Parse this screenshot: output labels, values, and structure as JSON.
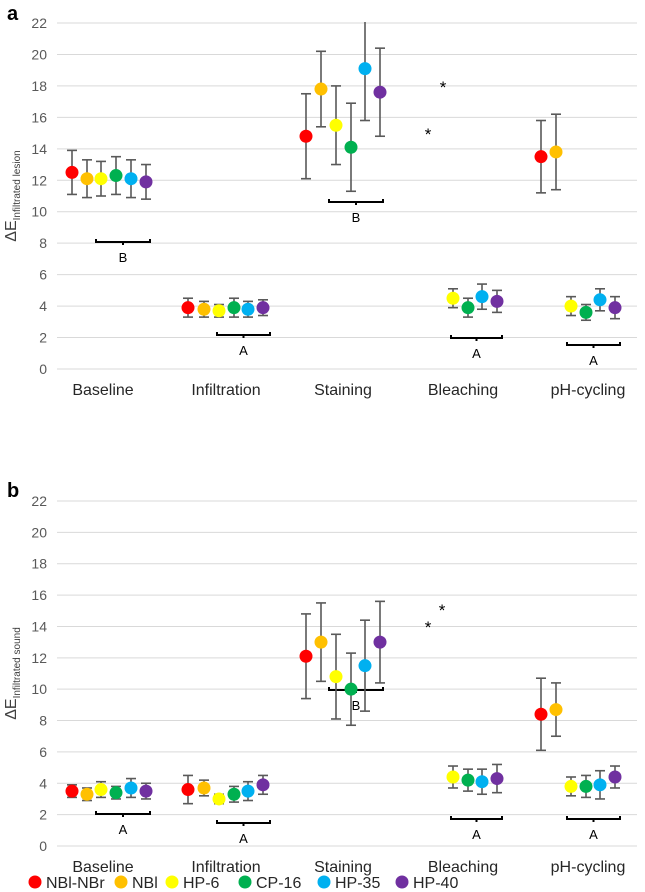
{
  "series_names": [
    "NBl-NBr",
    "NBl",
    "HP-6",
    "CP-16",
    "HP-35",
    "HP-40"
  ],
  "series_colors": [
    "#ff0000",
    "#ffc000",
    "#ffff00",
    "#00b050",
    "#00b0f0",
    "#7030a0"
  ],
  "chart_data": [
    {
      "type": "scatter",
      "panel_label": "a",
      "ylabel": "ΔE",
      "ylabel_subscript": "Infiltrated lesion",
      "ylim": [
        0,
        22
      ],
      "yticks": [
        "0",
        "2",
        "4",
        "6",
        "8",
        "10",
        "12",
        "14",
        "16",
        "18",
        "20",
        "22"
      ],
      "categories": [
        "Baseline",
        "Infiltration",
        "Staining",
        "Bleaching",
        "pH-cycling"
      ],
      "series": [
        {
          "name": "NBl-NBr",
          "values": [
            12.5,
            3.9,
            14.8,
            null,
            13.5
          ],
          "errors": [
            1.4,
            0.6,
            2.7,
            null,
            2.3
          ]
        },
        {
          "name": "NBl",
          "values": [
            12.1,
            3.8,
            17.8,
            null,
            13.8
          ],
          "errors": [
            1.2,
            0.5,
            2.4,
            null,
            2.4
          ]
        },
        {
          "name": "HP-6",
          "values": [
            12.1,
            3.7,
            15.5,
            4.5,
            4.0
          ],
          "errors": [
            1.1,
            0.4,
            2.5,
            0.6,
            0.6
          ]
        },
        {
          "name": "CP-16",
          "values": [
            12.3,
            3.9,
            14.1,
            3.9,
            3.6
          ],
          "errors": [
            1.2,
            0.6,
            2.8,
            0.6,
            0.5
          ]
        },
        {
          "name": "HP-35",
          "values": [
            12.1,
            3.8,
            19.1,
            4.6,
            4.4
          ],
          "errors": [
            1.2,
            0.5,
            3.3,
            0.8,
            0.7
          ]
        },
        {
          "name": "HP-40",
          "values": [
            11.9,
            3.9,
            17.6,
            4.3,
            3.9
          ],
          "errors": [
            1.1,
            0.5,
            2.8,
            0.7,
            0.7
          ]
        }
      ],
      "group_letters": [
        "B",
        "A",
        "B",
        "A",
        "A"
      ],
      "annotations": [
        "*",
        "*"
      ]
    },
    {
      "type": "scatter",
      "panel_label": "b",
      "ylabel": "ΔE",
      "ylabel_subscript": "Infiltrated sound",
      "ylim": [
        0,
        22
      ],
      "yticks": [
        "0",
        "2",
        "4",
        "6",
        "8",
        "10",
        "12",
        "14",
        "16",
        "18",
        "20",
        "22"
      ],
      "categories": [
        "Baseline",
        "Infiltration",
        "Staining",
        "Bleaching",
        "pH-cycling"
      ],
      "series": [
        {
          "name": "NBl-NBr",
          "values": [
            3.5,
            3.6,
            12.1,
            null,
            8.4
          ],
          "errors": [
            0.4,
            0.9,
            2.7,
            null,
            2.3
          ]
        },
        {
          "name": "NBl",
          "values": [
            3.3,
            3.7,
            13.0,
            null,
            8.7
          ],
          "errors": [
            0.4,
            0.5,
            2.5,
            null,
            1.7
          ]
        },
        {
          "name": "HP-6",
          "values": [
            3.6,
            3.0,
            10.8,
            4.4,
            3.8
          ],
          "errors": [
            0.5,
            0.3,
            2.7,
            0.7,
            0.6
          ]
        },
        {
          "name": "CP-16",
          "values": [
            3.4,
            3.3,
            10.0,
            4.2,
            3.8
          ],
          "errors": [
            0.4,
            0.5,
            2.3,
            0.7,
            0.7
          ]
        },
        {
          "name": "HP-35",
          "values": [
            3.7,
            3.5,
            11.5,
            4.1,
            3.9
          ],
          "errors": [
            0.6,
            0.6,
            2.9,
            0.8,
            0.9
          ]
        },
        {
          "name": "HP-40",
          "values": [
            3.5,
            3.9,
            13.0,
            4.3,
            4.4
          ],
          "errors": [
            0.5,
            0.6,
            2.6,
            0.9,
            0.7
          ]
        }
      ],
      "group_letters": [
        "A",
        "A",
        "B",
        "A",
        "A"
      ],
      "annotations": [
        "*",
        "*"
      ]
    }
  ]
}
